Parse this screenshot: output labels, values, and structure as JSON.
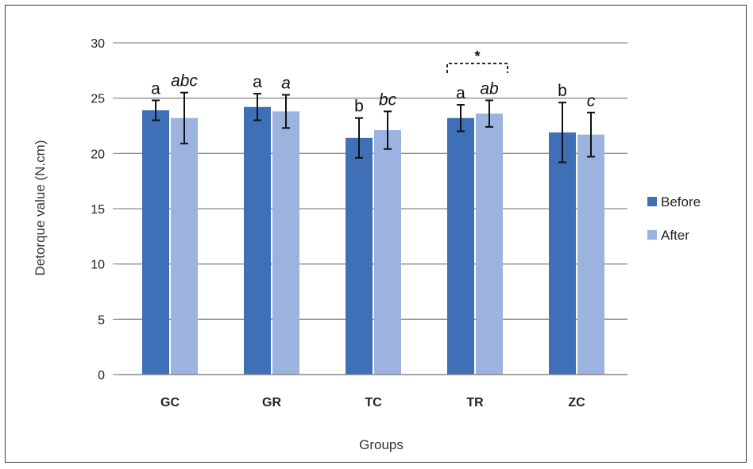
{
  "chart_data": {
    "type": "bar",
    "categories": [
      "GC",
      "GR",
      "TC",
      "TR",
      "ZC"
    ],
    "series": [
      {
        "name": "Before",
        "color": "#3f6fb6",
        "values": [
          23.9,
          24.2,
          21.4,
          23.2,
          21.9
        ],
        "errors": [
          0.9,
          1.2,
          1.8,
          1.2,
          2.7
        ],
        "annotations": [
          "a",
          "a",
          "b",
          "a",
          "b"
        ]
      },
      {
        "name": "After",
        "color": "#9bb3de",
        "values": [
          23.2,
          23.8,
          22.1,
          23.6,
          21.7
        ],
        "errors": [
          2.3,
          1.5,
          1.7,
          1.2,
          2.0
        ],
        "annotations": [
          "abc",
          "a",
          "bc",
          "ab",
          "c"
        ]
      }
    ],
    "xlabel": "Groups",
    "ylabel": "Detorque value (N.cm)",
    "ylim": [
      0,
      30
    ],
    "yticks": [
      0,
      5,
      10,
      15,
      20,
      25,
      30
    ],
    "grid": true,
    "legend_position": "right",
    "significance": {
      "category": "TR",
      "label": "*"
    }
  }
}
